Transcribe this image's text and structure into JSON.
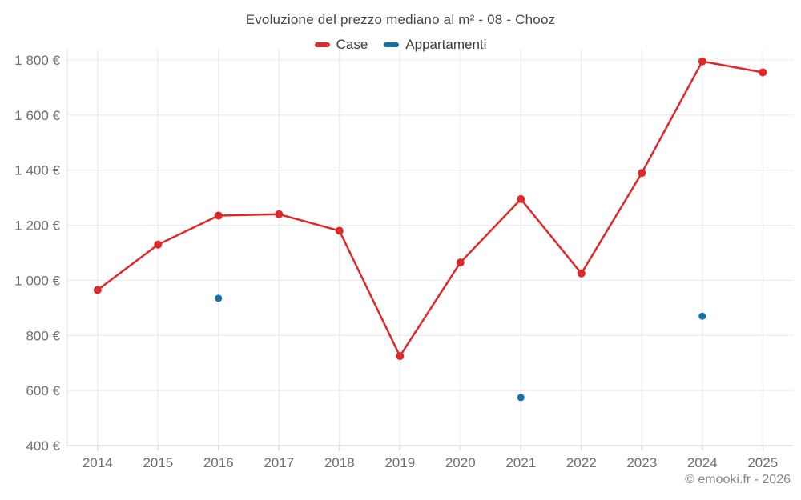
{
  "chart": {
    "title": "Evoluzione del prezzo mediano al m² - 08 - Chooz",
    "footer": "© emooki.fr - 2026"
  },
  "chart_data": {
    "type": "line",
    "title": "Evoluzione del prezzo mediano al m² - 08 - Chooz",
    "categories": [
      "2014",
      "2015",
      "2016",
      "2017",
      "2018",
      "2019",
      "2020",
      "2021",
      "2022",
      "2023",
      "2024",
      "2025"
    ],
    "series": [
      {
        "name": "Case",
        "color": "#e02828",
        "draw_line": true,
        "marker_radius": 5,
        "values": [
          965,
          1130,
          1235,
          1240,
          1180,
          725,
          1065,
          1295,
          1025,
          1390,
          1795,
          1755
        ]
      },
      {
        "name": "Appartamenti",
        "color": "#1470a8",
        "draw_line": false,
        "marker_radius": 4.5,
        "values": [
          null,
          null,
          935,
          null,
          null,
          null,
          null,
          575,
          null,
          null,
          870,
          null
        ]
      }
    ],
    "ylim": [
      400,
      1800
    ],
    "yticks": [
      {
        "value": 400,
        "label": "400 €"
      },
      {
        "value": 600,
        "label": "600 €"
      },
      {
        "value": 800,
        "label": "800 €"
      },
      {
        "value": 1000,
        "label": "1 000 €"
      },
      {
        "value": 1200,
        "label": "1 200 €"
      },
      {
        "value": 1400,
        "label": "1 400 €"
      },
      {
        "value": 1600,
        "label": "1 600 €"
      },
      {
        "value": 1800,
        "label": "1 800 €"
      }
    ],
    "grid": true,
    "legend_position": "top",
    "xlabel": "",
    "ylabel": "",
    "colors": {
      "grid": "#e8e8e8",
      "axis_line": "#cfcfcf",
      "plot_border": "#e3e3e3",
      "axis_text": "#6e6e6e",
      "title_text": "#474747",
      "footer_text": "#868686"
    }
  }
}
